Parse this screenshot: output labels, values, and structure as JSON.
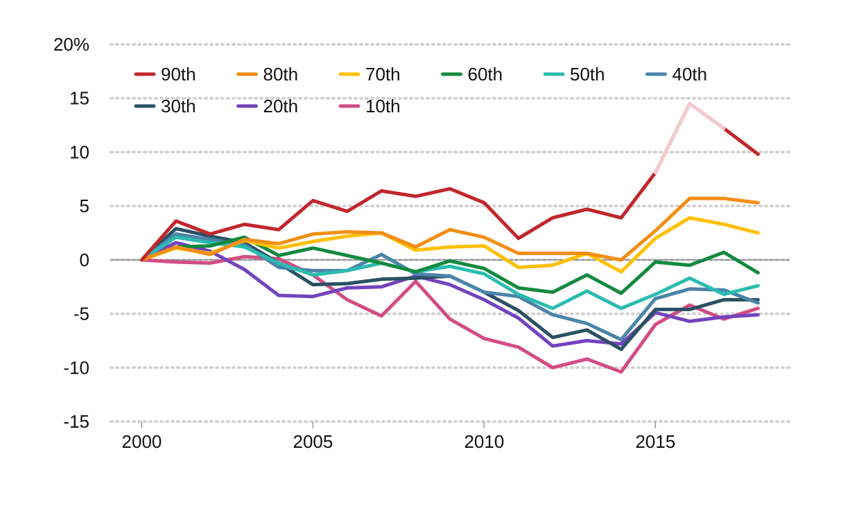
{
  "chart_data": {
    "type": "line",
    "title": "",
    "xlabel": "",
    "ylabel": "",
    "x": [
      2000,
      2001,
      2002,
      2003,
      2004,
      2005,
      2006,
      2007,
      2008,
      2009,
      2010,
      2011,
      2012,
      2013,
      2014,
      2015,
      2016,
      2017,
      2018
    ],
    "xlim": [
      1999.1,
      2018.9
    ],
    "ylim": [
      -15,
      20
    ],
    "x_ticks": [
      2000,
      2005,
      2010,
      2015
    ],
    "x_tick_labels": [
      "2000",
      "2005",
      "2010",
      "2015"
    ],
    "y_ticks": [
      20,
      15,
      10,
      5,
      0,
      -5,
      -10,
      -15
    ],
    "y_tick_labels": [
      "20%",
      "15",
      "10",
      "5",
      "0",
      "-5",
      "-10",
      "-15"
    ],
    "grid": true,
    "grid_style": "dotted horizontal",
    "zero_line": true,
    "legend_position": "top-left",
    "highlight": {
      "series": "90th",
      "from": 2015,
      "to": 2017,
      "color": "#F2CCCF"
    },
    "series": [
      {
        "name": "90th",
        "color": "#C0272D",
        "values": [
          0,
          3.6,
          2.4,
          3.3,
          2.8,
          5.5,
          4.5,
          6.4,
          5.9,
          6.6,
          5.3,
          2.0,
          3.9,
          4.7,
          3.9,
          8.1,
          14.5,
          12.2,
          9.8
        ]
      },
      {
        "name": "80th",
        "color": "#F28E14",
        "values": [
          0,
          1.2,
          0.5,
          1.9,
          1.5,
          2.4,
          2.6,
          2.5,
          1.2,
          2.8,
          2.1,
          0.6,
          0.6,
          0.6,
          0.0,
          2.7,
          5.7,
          5.7,
          5.3
        ]
      },
      {
        "name": "70th",
        "color": "#FFC000",
        "values": [
          0,
          1.1,
          0.6,
          1.8,
          1.1,
          1.7,
          2.2,
          2.5,
          0.9,
          1.2,
          1.3,
          -0.7,
          -0.5,
          0.6,
          -1.1,
          2.0,
          3.9,
          3.3,
          2.5
        ]
      },
      {
        "name": "60th",
        "color": "#13893F",
        "values": [
          0,
          1.2,
          1.3,
          2.1,
          0.4,
          1.1,
          0.4,
          -0.3,
          -1.1,
          -0.1,
          -0.8,
          -2.6,
          -3.0,
          -1.4,
          -3.1,
          -0.2,
          -0.5,
          0.7,
          -1.2
        ]
      },
      {
        "name": "50th",
        "color": "#2BBCB0",
        "values": [
          0,
          2.1,
          1.6,
          1.2,
          -0.3,
          -1.4,
          -1.0,
          -0.3,
          -1.1,
          -0.6,
          -1.3,
          -3.2,
          -4.5,
          -2.9,
          -4.5,
          -3.2,
          -1.7,
          -3.2,
          -2.4
        ]
      },
      {
        "name": "40th",
        "color": "#4A85A8",
        "values": [
          0,
          2.4,
          1.9,
          1.4,
          -0.7,
          -1.0,
          -1.0,
          0.5,
          -1.3,
          -1.5,
          -3.0,
          -3.4,
          -5.1,
          -5.9,
          -7.4,
          -3.6,
          -2.7,
          -2.8,
          -4.0
        ]
      },
      {
        "name": "30th",
        "color": "#2A5163",
        "values": [
          0,
          2.9,
          2.2,
          1.6,
          -0.3,
          -2.3,
          -2.2,
          -1.8,
          -1.7,
          -1.5,
          -3.0,
          -4.7,
          -7.2,
          -6.5,
          -8.3,
          -4.6,
          -4.6,
          -3.7,
          -3.7
        ]
      },
      {
        "name": "20th",
        "color": "#7343BE",
        "values": [
          0,
          1.6,
          0.8,
          -0.9,
          -3.3,
          -3.4,
          -2.6,
          -2.5,
          -1.5,
          -2.3,
          -3.7,
          -5.4,
          -8.0,
          -7.5,
          -7.8,
          -4.9,
          -5.7,
          -5.3,
          -5.1
        ]
      },
      {
        "name": "10th",
        "color": "#D24D83",
        "values": [
          0,
          -0.2,
          -0.3,
          0.3,
          0.1,
          -1.4,
          -3.7,
          -5.2,
          -2.0,
          -5.5,
          -7.3,
          -8.1,
          -10.0,
          -9.2,
          -10.4,
          -6.0,
          -4.2,
          -5.5,
          -4.5
        ]
      }
    ]
  }
}
